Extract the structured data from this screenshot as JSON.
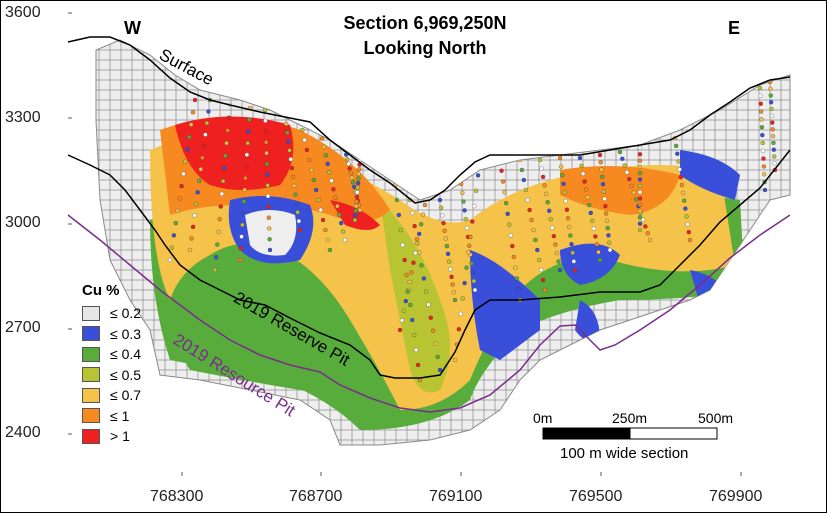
{
  "map": {
    "title_line1": "Section 6,969,250N",
    "title_line2": "Looking North",
    "direction_west": "W",
    "direction_east": "E",
    "label_surface": "Surface",
    "label_reserve_pit": "2019 Reserve Pit",
    "label_resource_pit": "2019 Resource Pit",
    "y_ticks": [
      "3600",
      "3300",
      "3000",
      "2700",
      "2400"
    ],
    "x_ticks": [
      "768300",
      "768700",
      "769100",
      "769500",
      "769900"
    ]
  },
  "legend": {
    "title": "Cu %",
    "items": [
      {
        "label": "≤ 0.2",
        "color": "#e6e6e6"
      },
      {
        "label": "≤ 0.3",
        "color": "#3a4fd9"
      },
      {
        "label": "≤ 0.4",
        "color": "#58ac3c"
      },
      {
        "label": "≤ 0.5",
        "color": "#b9c433"
      },
      {
        "label": "≤ 0.7",
        "color": "#f5c24a"
      },
      {
        "label": "≤ 1",
        "color": "#f6891f"
      },
      {
        "label": "> 1",
        "color": "#ee2020"
      }
    ]
  },
  "scale_bar": {
    "label_0": "0m",
    "label_mid": "250m",
    "label_end": "500m",
    "caption": "100 m wide section"
  },
  "colors": {
    "surface_line": "#000000",
    "reserve_pit_line": "#000000",
    "resource_pit_line": "#7a2d8c",
    "block_outline": "#8a8a8a"
  }
}
